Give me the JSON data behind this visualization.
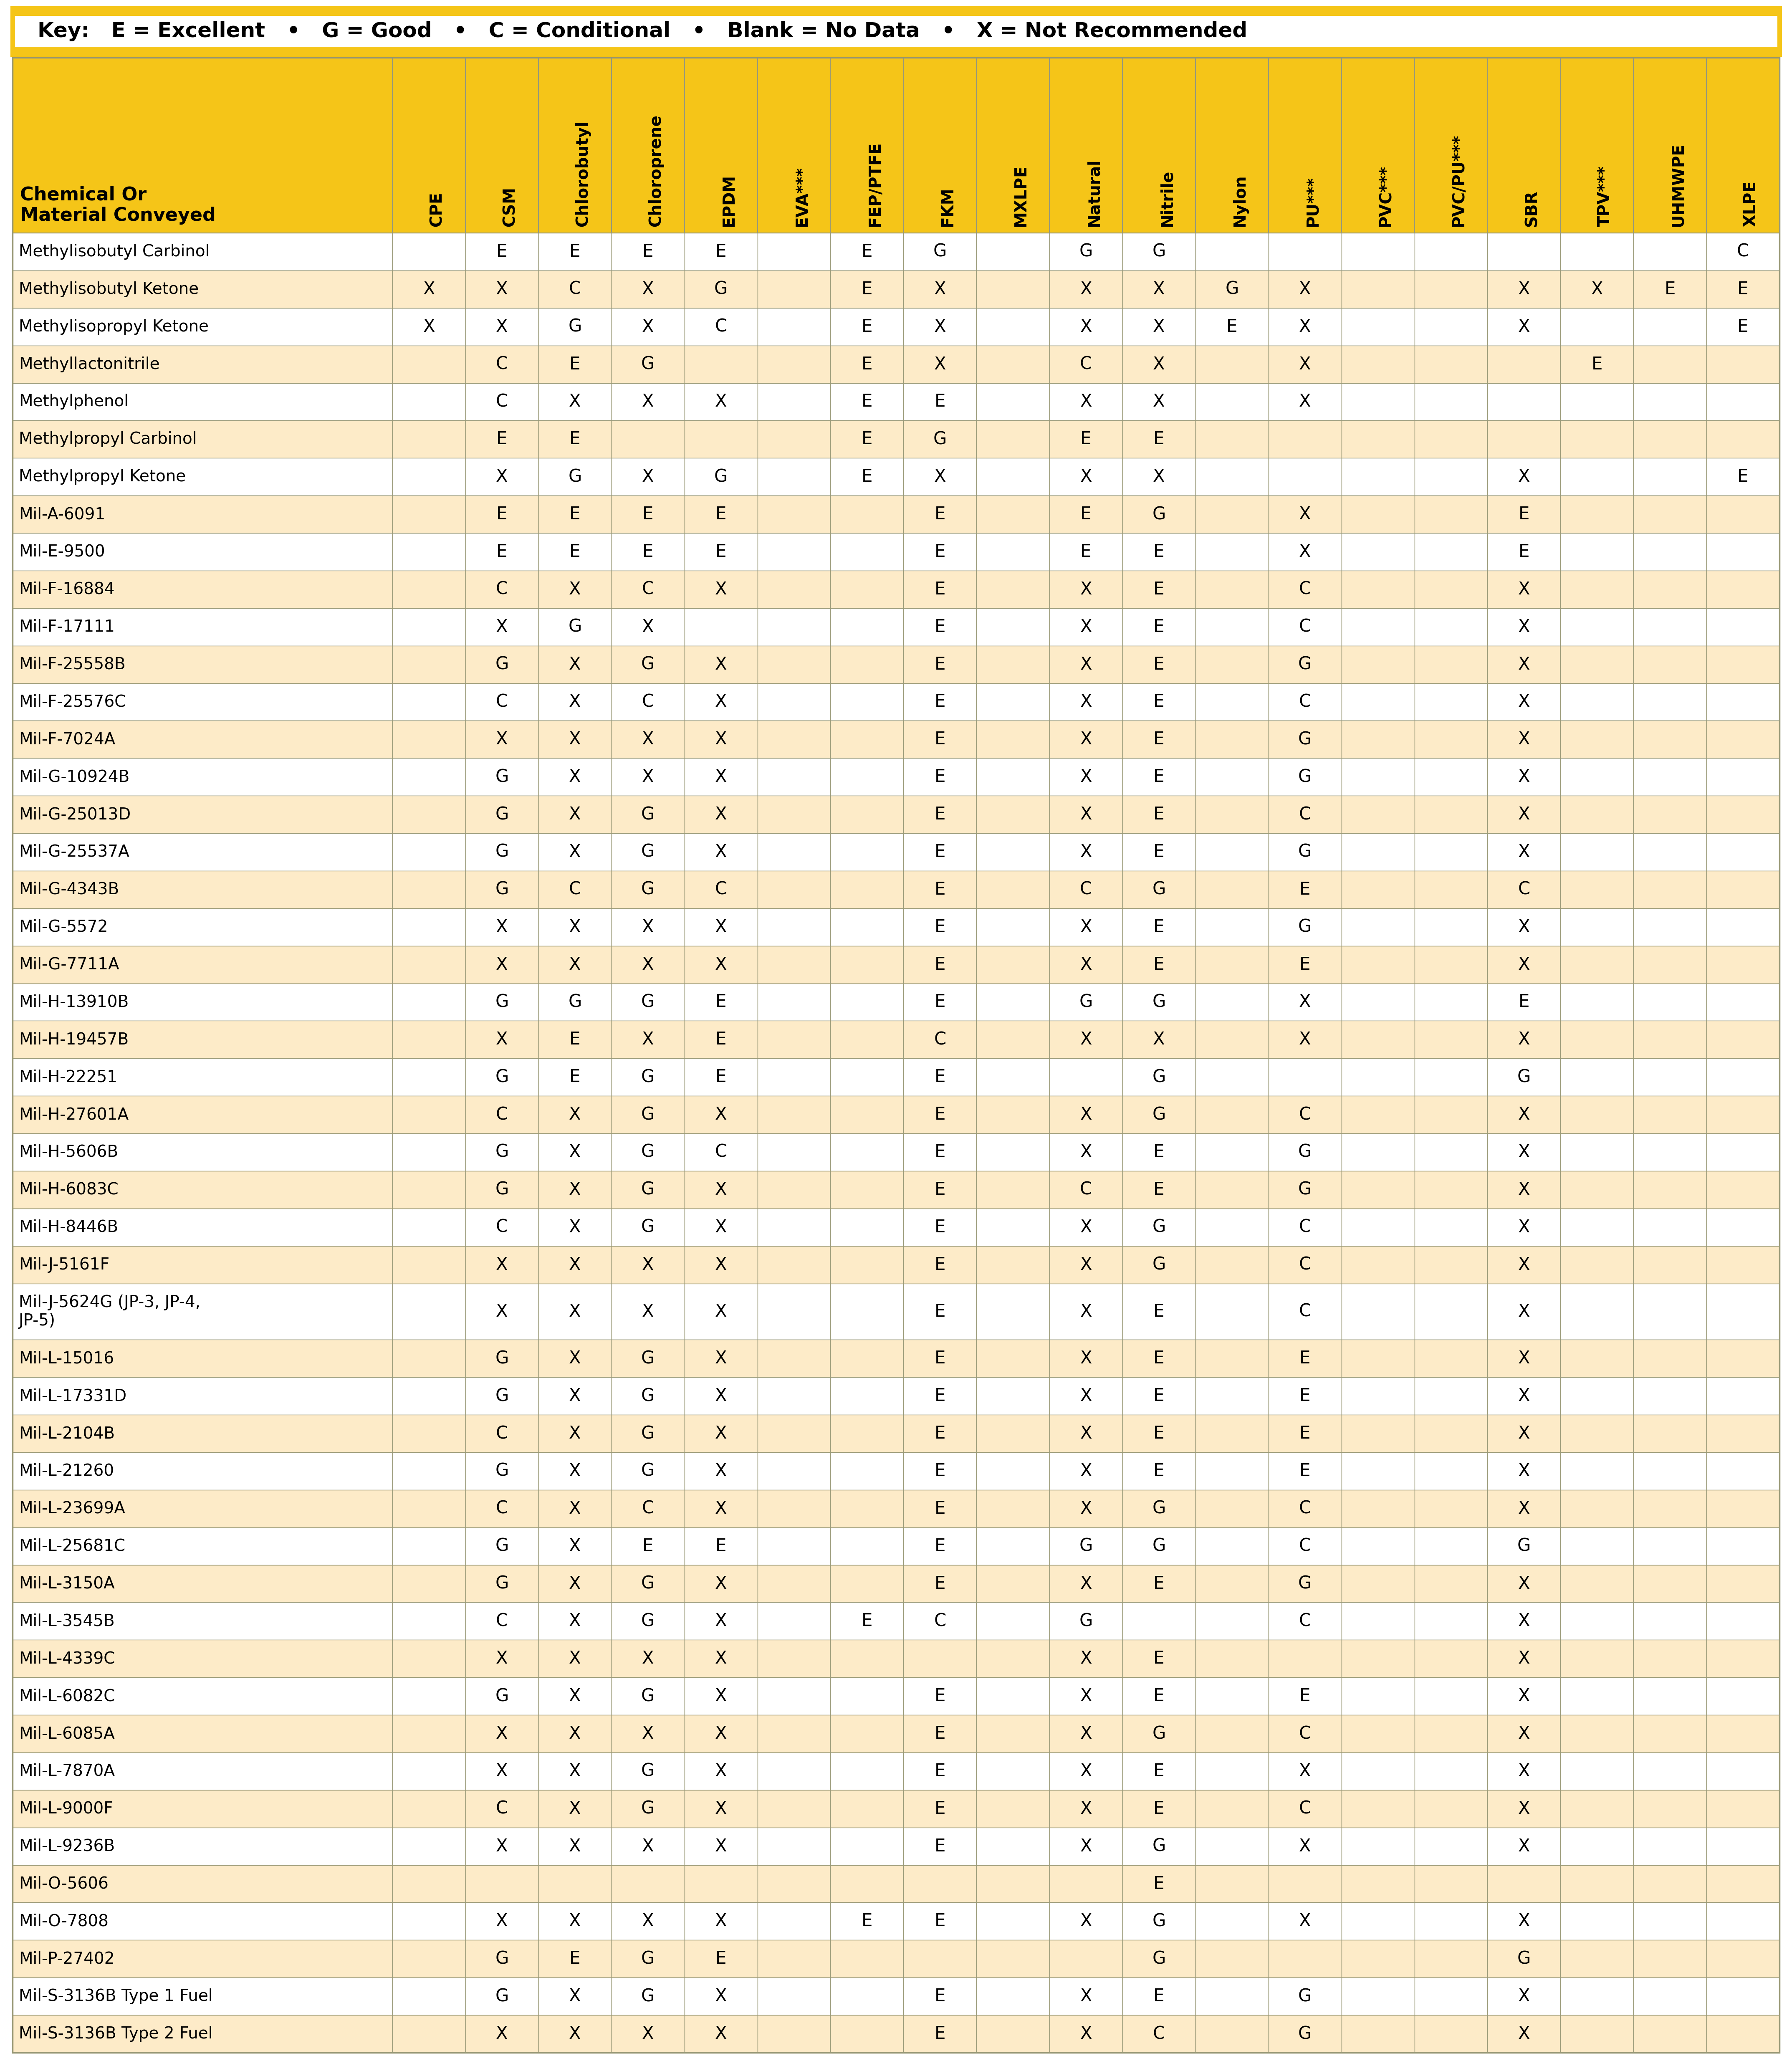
{
  "key_text_parts": [
    [
      "Key:  ",
      true
    ],
    [
      " E = Excellent ",
      false
    ],
    [
      " • ",
      false
    ],
    [
      " G = Good ",
      false
    ],
    [
      " • ",
      false
    ],
    [
      " C = Conditional ",
      false
    ],
    [
      " • ",
      false
    ],
    [
      " Blank = No Data ",
      false
    ],
    [
      " • ",
      false
    ],
    [
      " X = Not Recommended",
      false
    ]
  ],
  "key_bold_text": "Key:",
  "key_rest": "  E = Excellent  •  G = Good  •  C = Conditional  •  Blank = No Data  •  X = Not Recommended",
  "header_row": [
    "Chemical Or\nMaterial Conveyed",
    "CPE",
    "CSM",
    "Chlorobutyl",
    "Chloroprene",
    "EPDM",
    "EVA***",
    "FEP/PTFE",
    "FKM",
    "MXLPE",
    "Natural",
    "Nitrile",
    "Nylon",
    "PU***",
    "PVC***",
    "PVC/PU***",
    "SBR",
    "TPV***",
    "UHMWPE",
    "XLPE"
  ],
  "rows": [
    [
      "Methylisobutyl Carbinol",
      "",
      "E",
      "E",
      "E",
      "E",
      "",
      "E",
      "G",
      "",
      "G",
      "G",
      "",
      "",
      "",
      "",
      "",
      "",
      "",
      "C"
    ],
    [
      "Methylisobutyl Ketone",
      "X",
      "X",
      "C",
      "X",
      "G",
      "",
      "E",
      "X",
      "",
      "X",
      "X",
      "G",
      "X",
      "",
      "",
      "X",
      "X",
      "E",
      "E"
    ],
    [
      "Methylisopropyl Ketone",
      "X",
      "X",
      "G",
      "X",
      "C",
      "",
      "E",
      "X",
      "",
      "X",
      "X",
      "E",
      "X",
      "",
      "",
      "X",
      "",
      "",
      "E"
    ],
    [
      "Methyllactonitrile",
      "",
      "C",
      "E",
      "G",
      "",
      "",
      "E",
      "X",
      "",
      "C",
      "X",
      "",
      "X",
      "",
      "",
      "",
      "E",
      "",
      ""
    ],
    [
      "Methylphenol",
      "",
      "C",
      "X",
      "X",
      "X",
      "",
      "E",
      "E",
      "",
      "X",
      "X",
      "",
      "X",
      "",
      "",
      "",
      "",
      "",
      ""
    ],
    [
      "Methylpropyl Carbinol",
      "",
      "E",
      "E",
      "",
      "",
      "",
      "E",
      "G",
      "",
      "E",
      "E",
      "",
      "",
      "",
      "",
      "",
      "",
      "",
      ""
    ],
    [
      "Methylpropyl Ketone",
      "",
      "X",
      "G",
      "X",
      "G",
      "",
      "E",
      "X",
      "",
      "X",
      "X",
      "",
      "",
      "",
      "",
      "X",
      "",
      "",
      "E"
    ],
    [
      "Mil-A-6091",
      "",
      "E",
      "E",
      "E",
      "E",
      "",
      "",
      "E",
      "",
      "E",
      "G",
      "",
      "X",
      "",
      "",
      "E",
      "",
      "",
      ""
    ],
    [
      "Mil-E-9500",
      "",
      "E",
      "E",
      "E",
      "E",
      "",
      "",
      "E",
      "",
      "E",
      "E",
      "",
      "X",
      "",
      "",
      "E",
      "",
      "",
      ""
    ],
    [
      "Mil-F-16884",
      "",
      "C",
      "X",
      "C",
      "X",
      "",
      "",
      "E",
      "",
      "X",
      "E",
      "",
      "C",
      "",
      "",
      "X",
      "",
      "",
      ""
    ],
    [
      "Mil-F-17111",
      "",
      "X",
      "G",
      "X",
      "",
      "",
      "",
      "E",
      "",
      "X",
      "E",
      "",
      "C",
      "",
      "",
      "X",
      "",
      "",
      ""
    ],
    [
      "Mil-F-25558B",
      "",
      "G",
      "X",
      "G",
      "X",
      "",
      "",
      "E",
      "",
      "X",
      "E",
      "",
      "G",
      "",
      "",
      "X",
      "",
      "",
      ""
    ],
    [
      "Mil-F-25576C",
      "",
      "C",
      "X",
      "C",
      "X",
      "",
      "",
      "E",
      "",
      "X",
      "E",
      "",
      "C",
      "",
      "",
      "X",
      "",
      "",
      ""
    ],
    [
      "Mil-F-7024A",
      "",
      "X",
      "X",
      "X",
      "X",
      "",
      "",
      "E",
      "",
      "X",
      "E",
      "",
      "G",
      "",
      "",
      "X",
      "",
      "",
      ""
    ],
    [
      "Mil-G-10924B",
      "",
      "G",
      "X",
      "X",
      "X",
      "",
      "",
      "E",
      "",
      "X",
      "E",
      "",
      "G",
      "",
      "",
      "X",
      "",
      "",
      ""
    ],
    [
      "Mil-G-25013D",
      "",
      "G",
      "X",
      "G",
      "X",
      "",
      "",
      "E",
      "",
      "X",
      "E",
      "",
      "C",
      "",
      "",
      "X",
      "",
      "",
      ""
    ],
    [
      "Mil-G-25537A",
      "",
      "G",
      "X",
      "G",
      "X",
      "",
      "",
      "E",
      "",
      "X",
      "E",
      "",
      "G",
      "",
      "",
      "X",
      "",
      "",
      ""
    ],
    [
      "Mil-G-4343B",
      "",
      "G",
      "C",
      "G",
      "C",
      "",
      "",
      "E",
      "",
      "C",
      "G",
      "",
      "E",
      "",
      "",
      "C",
      "",
      "",
      ""
    ],
    [
      "Mil-G-5572",
      "",
      "X",
      "X",
      "X",
      "X",
      "",
      "",
      "E",
      "",
      "X",
      "E",
      "",
      "G",
      "",
      "",
      "X",
      "",
      "",
      ""
    ],
    [
      "Mil-G-7711A",
      "",
      "X",
      "X",
      "X",
      "X",
      "",
      "",
      "E",
      "",
      "X",
      "E",
      "",
      "E",
      "",
      "",
      "X",
      "",
      "",
      ""
    ],
    [
      "Mil-H-13910B",
      "",
      "G",
      "G",
      "G",
      "E",
      "",
      "",
      "E",
      "",
      "G",
      "G",
      "",
      "X",
      "",
      "",
      "E",
      "",
      "",
      ""
    ],
    [
      "Mil-H-19457B",
      "",
      "X",
      "E",
      "X",
      "E",
      "",
      "",
      "C",
      "",
      "X",
      "X",
      "",
      "X",
      "",
      "",
      "X",
      "",
      "",
      ""
    ],
    [
      "Mil-H-22251",
      "",
      "G",
      "E",
      "G",
      "E",
      "",
      "",
      "E",
      "",
      "",
      "G",
      "",
      "",
      "",
      "",
      "G",
      "",
      "",
      ""
    ],
    [
      "Mil-H-27601A",
      "",
      "C",
      "X",
      "G",
      "X",
      "",
      "",
      "E",
      "",
      "X",
      "G",
      "",
      "C",
      "",
      "",
      "X",
      "",
      "",
      ""
    ],
    [
      "Mil-H-5606B",
      "",
      "G",
      "X",
      "G",
      "C",
      "",
      "",
      "E",
      "",
      "X",
      "E",
      "",
      "G",
      "",
      "",
      "X",
      "",
      "",
      ""
    ],
    [
      "Mil-H-6083C",
      "",
      "G",
      "X",
      "G",
      "X",
      "",
      "",
      "E",
      "",
      "C",
      "E",
      "",
      "G",
      "",
      "",
      "X",
      "",
      "",
      ""
    ],
    [
      "Mil-H-8446B",
      "",
      "C",
      "X",
      "G",
      "X",
      "",
      "",
      "E",
      "",
      "X",
      "G",
      "",
      "C",
      "",
      "",
      "X",
      "",
      "",
      ""
    ],
    [
      "Mil-J-5161F",
      "",
      "X",
      "X",
      "X",
      "X",
      "",
      "",
      "E",
      "",
      "X",
      "G",
      "",
      "C",
      "",
      "",
      "X",
      "",
      "",
      ""
    ],
    [
      "Mil-J-5624G (JP-3, JP-4,\nJP-5)",
      "",
      "X",
      "X",
      "X",
      "X",
      "",
      "",
      "E",
      "",
      "X",
      "E",
      "",
      "C",
      "",
      "",
      "X",
      "",
      "",
      ""
    ],
    [
      "Mil-L-15016",
      "",
      "G",
      "X",
      "G",
      "X",
      "",
      "",
      "E",
      "",
      "X",
      "E",
      "",
      "E",
      "",
      "",
      "X",
      "",
      "",
      ""
    ],
    [
      "Mil-L-17331D",
      "",
      "G",
      "X",
      "G",
      "X",
      "",
      "",
      "E",
      "",
      "X",
      "E",
      "",
      "E",
      "",
      "",
      "X",
      "",
      "",
      ""
    ],
    [
      "Mil-L-2104B",
      "",
      "C",
      "X",
      "G",
      "X",
      "",
      "",
      "E",
      "",
      "X",
      "E",
      "",
      "E",
      "",
      "",
      "X",
      "",
      "",
      ""
    ],
    [
      "Mil-L-21260",
      "",
      "G",
      "X",
      "G",
      "X",
      "",
      "",
      "E",
      "",
      "X",
      "E",
      "",
      "E",
      "",
      "",
      "X",
      "",
      "",
      ""
    ],
    [
      "Mil-L-23699A",
      "",
      "C",
      "X",
      "C",
      "X",
      "",
      "",
      "E",
      "",
      "X",
      "G",
      "",
      "C",
      "",
      "",
      "X",
      "",
      "",
      ""
    ],
    [
      "Mil-L-25681C",
      "",
      "G",
      "X",
      "E",
      "E",
      "",
      "",
      "E",
      "",
      "G",
      "G",
      "",
      "C",
      "",
      "",
      "G",
      "",
      "",
      ""
    ],
    [
      "Mil-L-3150A",
      "",
      "G",
      "X",
      "G",
      "X",
      "",
      "",
      "E",
      "",
      "X",
      "E",
      "",
      "G",
      "",
      "",
      "X",
      "",
      "",
      ""
    ],
    [
      "Mil-L-3545B",
      "",
      "C",
      "X",
      "G",
      "X",
      "",
      "E",
      "C",
      "",
      "G",
      "",
      "",
      "C",
      "",
      "",
      "X",
      "",
      "",
      ""
    ],
    [
      "Mil-L-4339C",
      "",
      "X",
      "X",
      "X",
      "X",
      "",
      "",
      "",
      "",
      "X",
      "E",
      "",
      "",
      "",
      "",
      "X",
      "",
      "",
      ""
    ],
    [
      "Mil-L-6082C",
      "",
      "G",
      "X",
      "G",
      "X",
      "",
      "",
      "E",
      "",
      "X",
      "E",
      "",
      "E",
      "",
      "",
      "X",
      "",
      "",
      ""
    ],
    [
      "Mil-L-6085A",
      "",
      "X",
      "X",
      "X",
      "X",
      "",
      "",
      "E",
      "",
      "X",
      "G",
      "",
      "C",
      "",
      "",
      "X",
      "",
      "",
      ""
    ],
    [
      "Mil-L-7870A",
      "",
      "X",
      "X",
      "G",
      "X",
      "",
      "",
      "E",
      "",
      "X",
      "E",
      "",
      "X",
      "",
      "",
      "X",
      "",
      "",
      ""
    ],
    [
      "Mil-L-9000F",
      "",
      "C",
      "X",
      "G",
      "X",
      "",
      "",
      "E",
      "",
      "X",
      "E",
      "",
      "C",
      "",
      "",
      "X",
      "",
      "",
      ""
    ],
    [
      "Mil-L-9236B",
      "",
      "X",
      "X",
      "X",
      "X",
      "",
      "",
      "E",
      "",
      "X",
      "G",
      "",
      "X",
      "",
      "",
      "X",
      "",
      "",
      ""
    ],
    [
      "Mil-O-5606",
      "",
      "",
      "",
      "",
      "",
      "",
      "",
      "",
      "",
      "",
      "E",
      "",
      "",
      "",
      "",
      "",
      "",
      "",
      ""
    ],
    [
      "Mil-O-7808",
      "",
      "X",
      "X",
      "X",
      "X",
      "",
      "E",
      "E",
      "",
      "X",
      "G",
      "",
      "X",
      "",
      "",
      "X",
      "",
      "",
      ""
    ],
    [
      "Mil-P-27402",
      "",
      "G",
      "E",
      "G",
      "E",
      "",
      "",
      "",
      "",
      "",
      "G",
      "",
      "",
      "",
      "",
      "G",
      "",
      "",
      ""
    ],
    [
      "Mil-S-3136B Type 1 Fuel",
      "",
      "G",
      "X",
      "G",
      "X",
      "",
      "",
      "E",
      "",
      "X",
      "E",
      "",
      "G",
      "",
      "",
      "X",
      "",
      "",
      ""
    ],
    [
      "Mil-S-3136B Type 2 Fuel",
      "",
      "X",
      "X",
      "X",
      "X",
      "",
      "",
      "E",
      "",
      "X",
      "C",
      "",
      "G",
      "",
      "",
      "X",
      "",
      "",
      ""
    ]
  ],
  "bg_color_header": "#F5C518",
  "bg_color_odd": "#FFFFFF",
  "bg_color_even": "#FDEBC8",
  "border_color": "#999977",
  "text_color": "#000000",
  "key_bg": "#FFFFFF",
  "key_border_color": "#F5C518",
  "key_border_top_bottom": "#F5C518"
}
